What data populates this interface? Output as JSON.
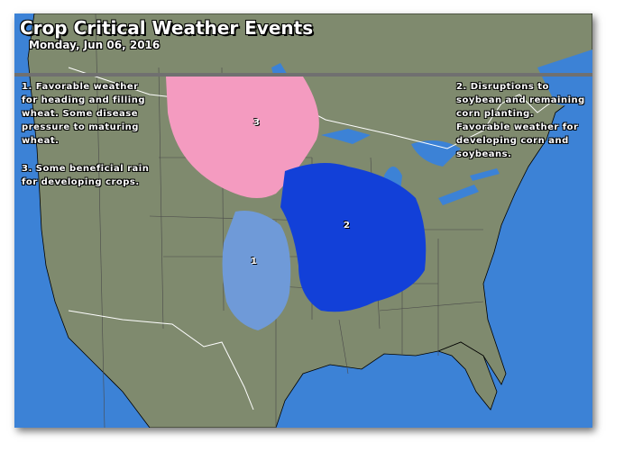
{
  "title": "Crop Critical Weather Events",
  "date": "Monday, Jun 06, 2016",
  "notes": {
    "note1": "1. Favorable weather for heading and filling wheat. Some disease pressure to maturing wheat.",
    "note3": "3. Some beneficial rain for developing crops.",
    "note2": "2. Disruptions to soybean and remaining corn planting. Favorable weather for developing corn and soybeans."
  },
  "regions": [
    {
      "label": "1",
      "color": "#6f9ad8"
    },
    {
      "label": "2",
      "color": "#1240d8"
    },
    {
      "label": "3",
      "color": "#f49bc0"
    }
  ],
  "colors": {
    "ocean": "#3c82d6",
    "land": "#7f8a6e",
    "borders": "#000000",
    "national_border": "#ffffff"
  }
}
